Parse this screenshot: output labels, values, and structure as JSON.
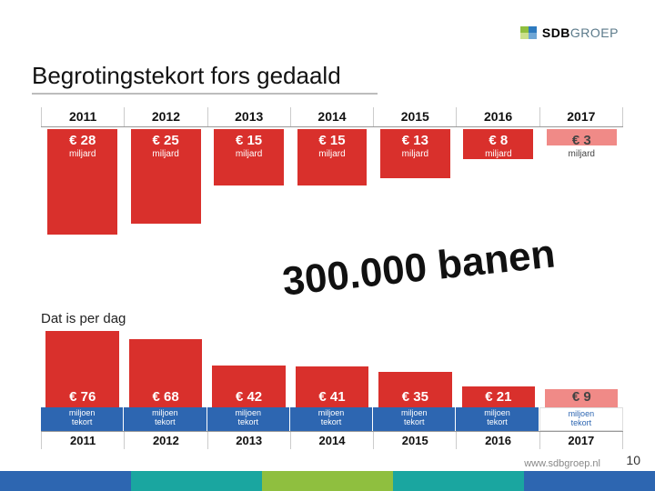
{
  "logo": {
    "name": "SDB",
    "suffix": "GROEP",
    "c1": "#8fbf3f",
    "c2": "#2e7abf",
    "c3": "#cbe08c",
    "c4": "#6fa7d6"
  },
  "title": "Begrotingstekort fors gedaald",
  "chart1": {
    "type": "bar",
    "years": [
      "2011",
      "2012",
      "2013",
      "2014",
      "2015",
      "2016",
      "2017"
    ],
    "values": [
      28,
      25,
      15,
      15,
      13,
      8,
      3
    ],
    "unit_label": "miljard",
    "prefix": "€ ",
    "bar_color": "#d9302c",
    "bar_color_last": "#f08a87",
    "text_color_last": "#444",
    "max": 28
  },
  "overlay": "300.000 banen",
  "subhead": "Dat is per dag",
  "chart2": {
    "type": "bar",
    "years": [
      "2011",
      "2012",
      "2013",
      "2014",
      "2015",
      "2016",
      "2017"
    ],
    "values": [
      76,
      68,
      42,
      41,
      35,
      21,
      9
    ],
    "prefix": "€ ",
    "bar_color": "#d9302c",
    "bar_color_last": "#f08a87",
    "text_color_last": "#444",
    "caption_line1": "miljoen",
    "caption_line2": "tekort",
    "caption_bg": "#2d66b1",
    "max": 76
  },
  "footer": {
    "url": "www.sdbgroep.nl",
    "page": "10",
    "colors": [
      "#2d66b1",
      "#1aa6a0",
      "#8fbf3f",
      "#1aa6a0",
      "#2d66b1"
    ]
  }
}
